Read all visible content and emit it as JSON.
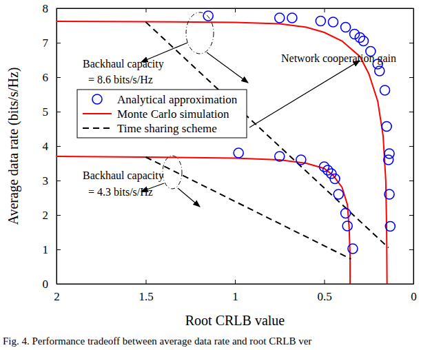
{
  "chart_data": {
    "type": "line",
    "x_label": "Root CRLB value",
    "y_label": "Average data rate (bits/s/Hz)",
    "caption": "Fig. 4. Performance tradeoff between average data rate and root CRLB ver",
    "xlim": [
      2,
      0
    ],
    "xticks": [
      2,
      1.5,
      1,
      0.5,
      0
    ],
    "ylim": [
      0,
      8
    ],
    "yticks": [
      0,
      1,
      2,
      3,
      4,
      5,
      6,
      7,
      8
    ],
    "grid": false,
    "legend": "upper left",
    "series": [
      {
        "name": "Analytical approximation",
        "color": "#0000ff",
        "marker": "circle",
        "line_style": "none",
        "data": [
          {
            "x": [
              1.15,
              0.75,
              0.68,
              0.52,
              0.45,
              0.38,
              0.33,
              0.3,
              0.28,
              0.24,
              0.2,
              0.19,
              0.16,
              0.15,
              0.135,
              0.14,
              0.135,
              0.13
            ],
            "values": [
              7.78,
              7.72,
              7.72,
              7.63,
              7.6,
              7.45,
              7.25,
              7.15,
              7.05,
              6.75,
              6.38,
              6.18,
              5.62,
              4.57,
              3.78,
              3.6,
              2.6,
              1.67
            ]
          },
          {
            "x": [
              0.98,
              0.75,
              0.63,
              0.5,
              0.48,
              0.46,
              0.44,
              0.42,
              0.38,
              0.37,
              0.34
            ],
            "values": [
              3.8,
              3.7,
              3.6,
              3.4,
              3.3,
              3.2,
              3.05,
              2.6,
              2.05,
              1.68,
              1.02
            ]
          }
        ]
      },
      {
        "name": "Monte Carlo simulation",
        "color": "#ff0000",
        "marker": "none",
        "line_style": "solid",
        "data": [
          {
            "x": [
              2,
              1.5,
              1,
              0.75,
              0.6,
              0.5,
              0.4,
              0.3,
              0.25,
              0.2,
              0.17,
              0.155,
              0.15,
              0.148
            ],
            "values": [
              7.62,
              7.61,
              7.59,
              7.55,
              7.45,
              7.3,
              7.05,
              6.6,
              6.1,
              5.3,
              4.3,
              3.0,
              1.5,
              0
            ]
          },
          {
            "x": [
              2,
              1.5,
              1,
              0.75,
              0.6,
              0.5,
              0.45,
              0.4,
              0.37,
              0.36,
              0.355,
              0.355
            ],
            "values": [
              3.7,
              3.68,
              3.65,
              3.6,
              3.5,
              3.35,
              3.15,
              2.8,
              2.3,
              1.6,
              0.8,
              0
            ]
          }
        ]
      },
      {
        "name": "Time sharing scheme",
        "color": "#000000",
        "marker": "none",
        "line_style": "dashed",
        "data": [
          {
            "x": [
              1.5,
              0.14
            ],
            "values": [
              7.6,
              1.05
            ]
          },
          {
            "x": [
              1.5,
              0.35
            ],
            "values": [
              3.68,
              0.72
            ]
          }
        ]
      }
    ],
    "annotations": [
      {
        "text": [
          "Backhaul capacity",
          "= 8.6 bits/s/Hz"
        ]
      },
      {
        "text": [
          "Network cooperation gain"
        ]
      },
      {
        "text": [
          "Backhaul capacity",
          "= 4.3 bits/s/Hz"
        ]
      }
    ]
  }
}
